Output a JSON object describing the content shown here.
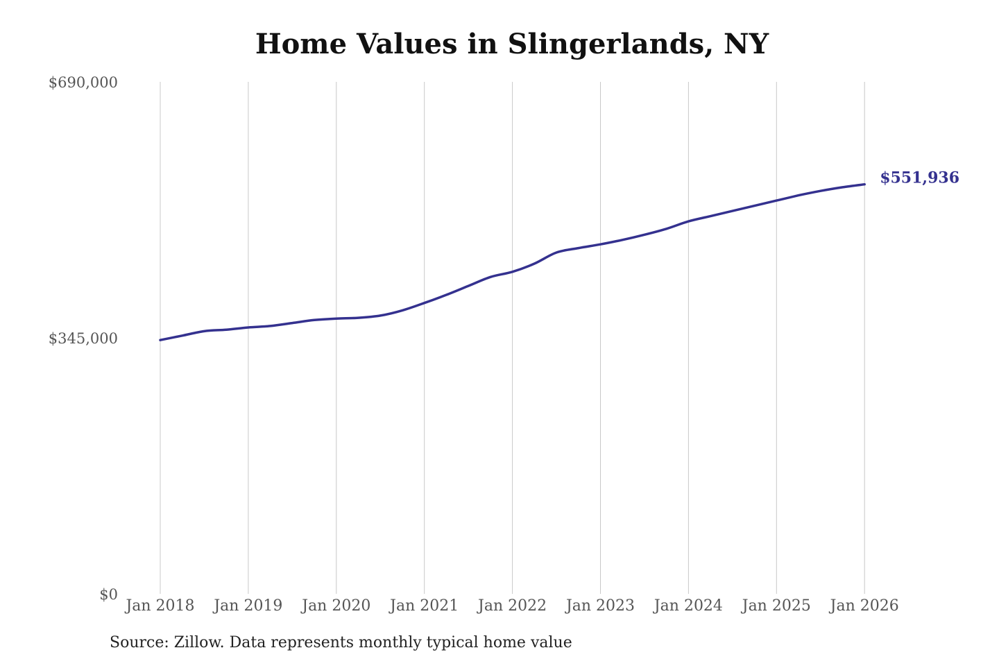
{
  "chart_data": {
    "type": "line",
    "title": "Home Values in Slingerlands, NY",
    "xlabel": "",
    "ylabel": "",
    "ylim": [
      0,
      690000
    ],
    "y_ticks": [
      "$690,000",
      "$345,000",
      "$0"
    ],
    "y_tick_values": [
      690000,
      345000,
      0
    ],
    "x_ticks": [
      "Jan 2018",
      "Jan 2019",
      "Jan 2020",
      "Jan 2021",
      "Jan 2022",
      "Jan 2023",
      "Jan 2024",
      "Jan 2025",
      "Jan 2026"
    ],
    "grid": "vertical",
    "line_color": "#34318f",
    "end_label": "$551,936",
    "series": [
      {
        "x": [
          "2018-01",
          "2018-04",
          "2018-07",
          "2018-10",
          "2019-01",
          "2019-04",
          "2019-07",
          "2019-10",
          "2020-01",
          "2020-04",
          "2020-07",
          "2020-10",
          "2021-01",
          "2021-04",
          "2021-07",
          "2021-10",
          "2022-01",
          "2022-04",
          "2022-07",
          "2022-10",
          "2023-01",
          "2023-04",
          "2023-07",
          "2023-10",
          "2024-01",
          "2024-04",
          "2024-07",
          "2024-10",
          "2025-01",
          "2025-04",
          "2025-07",
          "2025-10",
          "2026-01"
        ],
        "values": [
          342000,
          348000,
          354000,
          356000,
          359000,
          361000,
          365000,
          369000,
          371000,
          372000,
          375000,
          382000,
          392000,
          403000,
          415000,
          427000,
          434000,
          445000,
          460000,
          466000,
          471000,
          477000,
          484000,
          492000,
          502000,
          509000,
          516000,
          523000,
          530000,
          537000,
          543000,
          548000,
          551936
        ]
      }
    ]
  },
  "source": "Source: Zillow. Data represents monthly typical home value"
}
